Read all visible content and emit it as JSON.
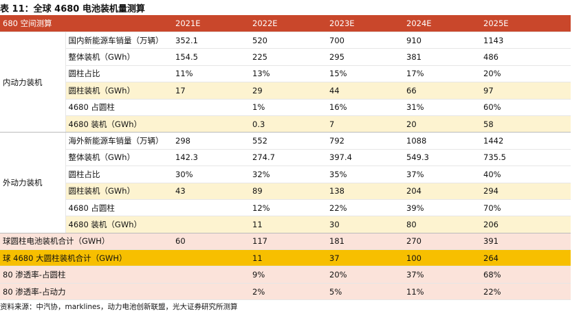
{
  "header": {
    "title": "表 11：全球 4680 电池装机量测算",
    "columns": [
      "680 空间测算",
      "2021E",
      "2022E",
      "2023E",
      "2024E",
      "2025E"
    ]
  },
  "groups": [
    {
      "label": "内动力装机",
      "rows": [
        {
          "label": "国内新能源车销量（万辆）",
          "values": [
            "352.1",
            "520",
            "700",
            "910",
            "1143"
          ]
        },
        {
          "label": "整体装机（GWh）",
          "values": [
            "154.5",
            "225",
            "295",
            "381",
            "486"
          ]
        },
        {
          "label": "圆柱占比",
          "values": [
            "11%",
            "13%",
            "15%",
            "17%",
            "20%"
          ]
        },
        {
          "label": "圆柱装机（GWh）",
          "values": [
            "17",
            "29",
            "44",
            "66",
            "97"
          ]
        },
        {
          "label": "4680 占圆柱",
          "values": [
            null,
            "1%",
            "16%",
            "31%",
            "60%"
          ]
        },
        {
          "label": "4680 装机（GWh）",
          "values": [
            null,
            "0.3",
            "7",
            "20",
            "58"
          ]
        }
      ]
    },
    {
      "label": "外动力装机",
      "rows": [
        {
          "label": "海外新能源车销量（万辆）",
          "values": [
            "298",
            "552",
            "792",
            "1088",
            "1442"
          ]
        },
        {
          "label": "整体装机（GWh）",
          "values": [
            "142.3",
            "274.7",
            "397.4",
            "549.3",
            "735.5"
          ]
        },
        {
          "label": "圆柱占比",
          "values": [
            "30%",
            "32%",
            "35%",
            "37%",
            "40%"
          ]
        },
        {
          "label": "圆柱装机（GWh）",
          "values": [
            "43",
            "89",
            "138",
            "204",
            "294"
          ]
        },
        {
          "label": "4680 占圆柱",
          "values": [
            null,
            "12%",
            "22%",
            "39%",
            "70%"
          ]
        },
        {
          "label": "4680 装机（GWh）",
          "values": [
            null,
            "11",
            "30",
            "80",
            "206"
          ]
        }
      ]
    }
  ],
  "totals": [
    {
      "label": "球圆柱电池装机合计（GWH）",
      "values": [
        "60",
        "117",
        "181",
        "270",
        "391"
      ]
    },
    {
      "label": "球 4680 大圆柱装机合计（GWH）",
      "values": [
        null,
        "11",
        "37",
        "100",
        "264"
      ]
    },
    {
      "label": "80 渗透率-占圆柱",
      "values": [
        null,
        "9%",
        "20%",
        "37%",
        "68%"
      ]
    },
    {
      "label": "80 渗透率-占动力",
      "values": [
        null,
        "2%",
        "5%",
        "11%",
        "22%"
      ]
    }
  ],
  "source": "资料来源：中汽协，marklines，动力电池创新联盟，光大证券研究所测算"
}
